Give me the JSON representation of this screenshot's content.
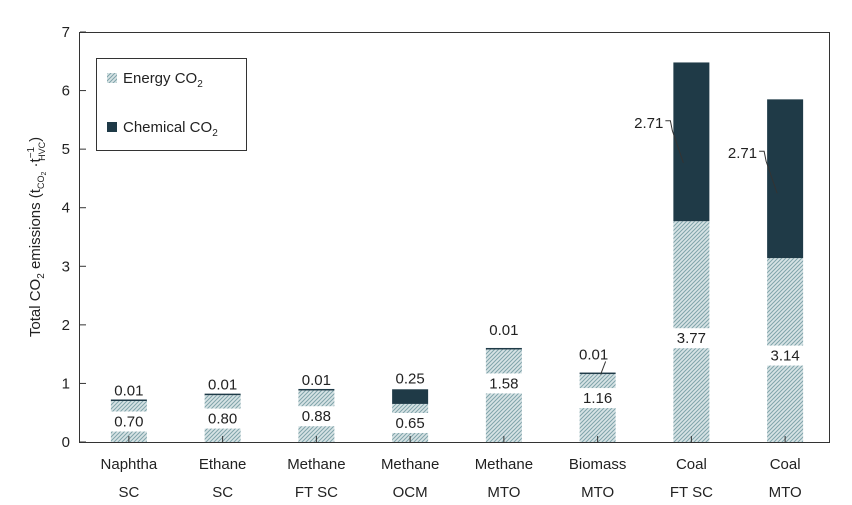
{
  "chart_data": {
    "type": "bar",
    "stacked": true,
    "categories": [
      [
        "Naphtha",
        "SC"
      ],
      [
        "Ethane",
        "SC"
      ],
      [
        "Methane",
        "FT SC"
      ],
      [
        "Methane",
        "OCM"
      ],
      [
        "Methane",
        "MTO"
      ],
      [
        "Biomass",
        "MTO"
      ],
      [
        "Coal",
        "FT SC"
      ],
      [
        "Coal",
        "MTO"
      ]
    ],
    "series": [
      {
        "name": "Energy CO₂",
        "values": [
          0.7,
          0.8,
          0.88,
          0.65,
          1.58,
          1.16,
          3.77,
          3.14
        ],
        "color": "#8fb1b8",
        "pattern": "hatched"
      },
      {
        "name": "Chemical CO₂",
        "values": [
          0.01,
          0.01,
          0.01,
          0.25,
          0.01,
          0.01,
          2.71,
          2.71
        ],
        "color": "#1f3a47"
      }
    ],
    "energy_labels": [
      "0.70",
      "0.80",
      "0.88",
      "0.65",
      "1.58",
      "1.16",
      "3.77",
      "3.14"
    ],
    "chemical_labels": [
      "0.01",
      "0.01",
      "0.01",
      "0.25",
      "0.01",
      "0.01",
      "2.71",
      "2.71"
    ],
    "ylabel": "Total CO₂ emissions (t CO₂ · t⁻¹ HVC)",
    "ylim": [
      0,
      7
    ],
    "yticks": [
      "0",
      "1",
      "2",
      "3",
      "4",
      "5",
      "6",
      "7"
    ],
    "legend_position": "top-left",
    "grid": false
  }
}
